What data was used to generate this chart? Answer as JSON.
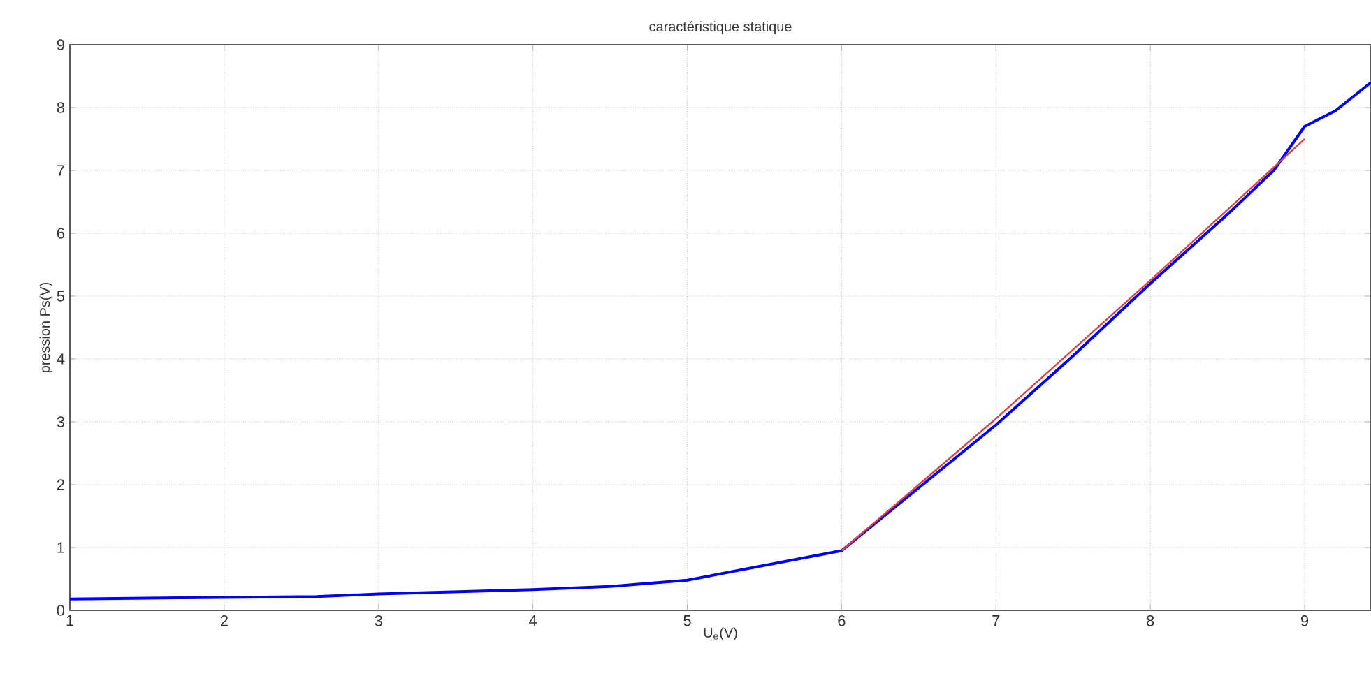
{
  "chart_data": {
    "type": "line",
    "title": "caractéristique statique",
    "xlabel": "U$_{e}$(V)",
    "ylabel": "pression Ps(V)",
    "xlim": [
      1,
      9.43
    ],
    "ylim": [
      0,
      9
    ],
    "xticks": [
      1,
      2,
      3,
      4,
      5,
      6,
      7,
      8,
      9
    ],
    "yticks": [
      0,
      1,
      2,
      3,
      4,
      5,
      6,
      7,
      8,
      9
    ],
    "grid": true,
    "line_style": "solid",
    "series": [
      {
        "color": "#0000ff",
        "x": [
          1,
          1.75,
          2.6,
          3,
          4,
          4.5,
          5,
          6,
          6.5,
          7,
          7.5,
          8,
          8.5,
          8.8,
          9,
          9.2,
          9.43
        ],
        "values": [
          0.18,
          0.2,
          0.22,
          0.26,
          0.33,
          0.38,
          0.48,
          0.95,
          1.95,
          2.95,
          4.05,
          5.2,
          6.3,
          7.0,
          7.7,
          7.95,
          8.4
        ]
      },
      {
        "color": "#e04040",
        "x": [
          6,
          7,
          8,
          9
        ],
        "values": [
          0.95,
          3.05,
          5.25,
          7.5
        ]
      }
    ]
  }
}
